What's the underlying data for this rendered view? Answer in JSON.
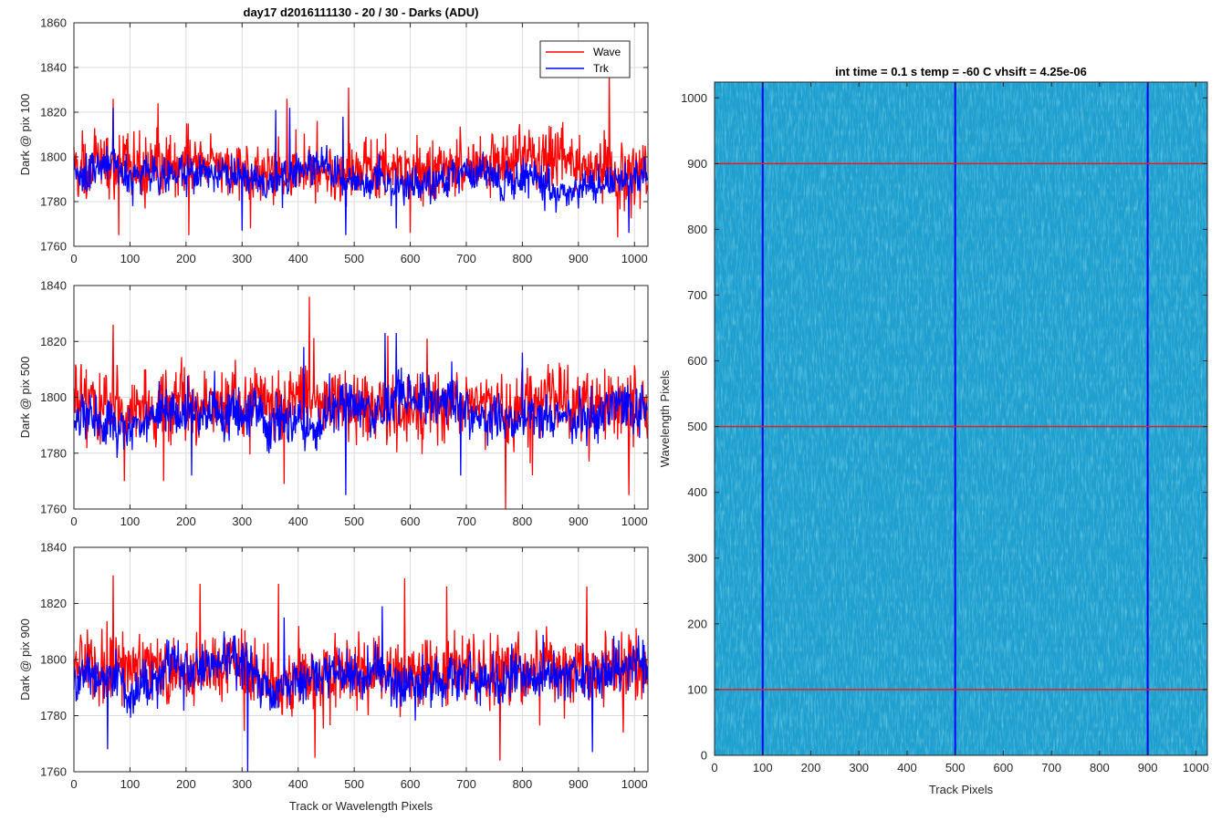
{
  "chart_data": [
    {
      "id": "p100",
      "type": "line",
      "title": "day17 d2016111130 - 20 / 30 - Darks (ADU)",
      "xlabel": "",
      "ylabel": "Dark @ pix 100",
      "xlim": [
        0,
        1024
      ],
      "ylim": [
        1760,
        1860
      ],
      "xticks": [
        "0",
        "100",
        "200",
        "300",
        "400",
        "500",
        "600",
        "700",
        "800",
        "900",
        "1000"
      ],
      "yticks": [
        "1760",
        "1780",
        "1800",
        "1820",
        "1840",
        "1860"
      ],
      "grid": true,
      "legend": "top-right",
      "series": [
        {
          "name": "Wave",
          "color": "#ff0000",
          "mean": 1795,
          "amp": 10,
          "peaks": [
            [
              70,
              1826
            ],
            [
              150,
              1824
            ],
            [
              380,
              1826
            ],
            [
              490,
              1831
            ],
            [
              955,
              1837
            ]
          ],
          "dips": [
            [
              80,
              1765
            ],
            [
              205,
              1765
            ],
            [
              315,
              1768
            ],
            [
              600,
              1766
            ],
            [
              970,
              1764
            ]
          ]
        },
        {
          "name": "Trk",
          "color": "#0000ff",
          "mean": 1792,
          "amp": 6,
          "peaks": [
            [
              70,
              1822
            ],
            [
              360,
              1821
            ],
            [
              385,
              1822
            ],
            [
              480,
              1818
            ]
          ],
          "dips": [
            [
              300,
              1767
            ],
            [
              485,
              1765
            ],
            [
              575,
              1768
            ],
            [
              990,
              1766
            ]
          ]
        }
      ]
    },
    {
      "id": "p500",
      "type": "line",
      "title": "",
      "xlabel": "",
      "ylabel": "Dark @ pix 500",
      "xlim": [
        0,
        1024
      ],
      "ylim": [
        1760,
        1840
      ],
      "xticks": [
        "0",
        "100",
        "200",
        "300",
        "400",
        "500",
        "600",
        "700",
        "800",
        "900",
        "1000"
      ],
      "yticks": [
        "1760",
        "1780",
        "1800",
        "1820",
        "1840"
      ],
      "grid": true,
      "legend": "none",
      "series": [
        {
          "name": "Wave",
          "color": "#ff0000",
          "mean": 1797,
          "amp": 9,
          "peaks": [
            [
              70,
              1826
            ],
            [
              420,
              1836
            ],
            [
              560,
              1822
            ],
            [
              630,
              1821
            ]
          ],
          "dips": [
            [
              90,
              1770
            ],
            [
              160,
              1770
            ],
            [
              375,
              1769
            ],
            [
              770,
              1760
            ],
            [
              990,
              1765
            ]
          ]
        },
        {
          "name": "Trk",
          "color": "#0000ff",
          "mean": 1794,
          "amp": 6,
          "peaks": [
            [
              410,
              1818
            ],
            [
              555,
              1823
            ],
            [
              575,
              1823
            ],
            [
              800,
              1816
            ]
          ],
          "dips": [
            [
              210,
              1772
            ],
            [
              485,
              1765
            ],
            [
              690,
              1772
            ]
          ]
        }
      ]
    },
    {
      "id": "p900",
      "type": "line",
      "title": "",
      "xlabel": "Track or Wavelength Pixels",
      "ylabel": "Dark @ pix 900",
      "xlim": [
        0,
        1024
      ],
      "ylim": [
        1760,
        1840
      ],
      "xticks": [
        "0",
        "100",
        "200",
        "300",
        "400",
        "500",
        "600",
        "700",
        "800",
        "900",
        "1000"
      ],
      "yticks": [
        "1760",
        "1780",
        "1800",
        "1820",
        "1840"
      ],
      "grid": true,
      "legend": "none",
      "series": [
        {
          "name": "Wave",
          "color": "#ff0000",
          "mean": 1796,
          "amp": 9,
          "peaks": [
            [
              70,
              1830
            ],
            [
              225,
              1827
            ],
            [
              365,
              1827
            ],
            [
              590,
              1829
            ],
            [
              665,
              1826
            ],
            [
              915,
              1826
            ]
          ],
          "dips": [
            [
              430,
              1765
            ],
            [
              760,
              1764
            ],
            [
              980,
              1774
            ]
          ]
        },
        {
          "name": "Trk",
          "color": "#0000ff",
          "mean": 1793,
          "amp": 6,
          "peaks": [
            [
              375,
              1815
            ],
            [
              550,
              1819
            ]
          ],
          "dips": [
            [
              60,
              1768
            ],
            [
              310,
              1760
            ],
            [
              925,
              1767
            ]
          ]
        }
      ]
    },
    {
      "id": "image",
      "type": "heatmap",
      "title": "int time = 0.1 s   temp = -60 C   vhsift = 4.25e-06",
      "xlabel": "Track Pixels",
      "ylabel": "Wavelength Pixels",
      "xlim": [
        0,
        1024
      ],
      "ylim": [
        0,
        1024
      ],
      "xticks": [
        "0",
        "100",
        "200",
        "300",
        "400",
        "500",
        "600",
        "700",
        "800",
        "900",
        "1000"
      ],
      "yticks": [
        "0",
        "100",
        "200",
        "300",
        "400",
        "500",
        "600",
        "700",
        "800",
        "900",
        "1000"
      ],
      "colormap": "parula",
      "base_color": "#1e9fd0",
      "vlines": {
        "color": "#0000ff",
        "positions": [
          100,
          500,
          900
        ]
      },
      "hlines": {
        "color": "#e02020",
        "positions": [
          100,
          500,
          900
        ]
      }
    }
  ]
}
